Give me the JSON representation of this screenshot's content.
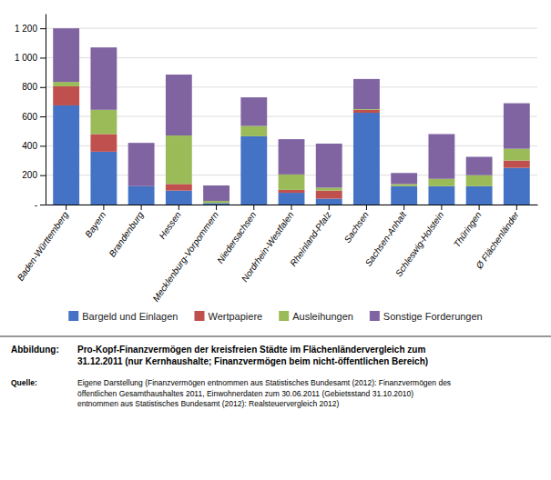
{
  "chart_data": {
    "type": "bar",
    "stacked": true,
    "grid": true,
    "legend": "bottom",
    "categories": [
      "Baden-Württemberg",
      "Bayern",
      "Brandenburg",
      "Hessen",
      "Mecklenburg-Vorpommern",
      "Niedersachsen",
      "Nordrhein-Westfalen",
      "Rheinland-Pfalz",
      "Sachsen",
      "Sachsen-Anhalt",
      "Schleswig-Holstein",
      "Thüringen",
      "Ø Flächenländer"
    ],
    "series": [
      {
        "name": "Bargeld und Einlagen",
        "color": "#4472C4",
        "values": [
          675,
          360,
          125,
          95,
          10,
          465,
          80,
          40,
          625,
          125,
          125,
          125,
          250
        ]
      },
      {
        "name": "Wertpapiere",
        "color": "#C0504D",
        "values": [
          130,
          120,
          0,
          45,
          0,
          0,
          20,
          55,
          20,
          0,
          0,
          0,
          50
        ]
      },
      {
        "name": "Ausleihungen",
        "color": "#9BBB59",
        "values": [
          30,
          165,
          0,
          330,
          15,
          70,
          105,
          20,
          5,
          15,
          50,
          75,
          80
        ]
      },
      {
        "name": "Sonstige Forderungen",
        "color": "#8064A2",
        "values": [
          365,
          425,
          295,
          415,
          105,
          195,
          240,
          300,
          205,
          75,
          305,
          125,
          310
        ]
      }
    ],
    "ylim": [
      0,
      1300
    ],
    "yticks": [
      {
        "value": 0,
        "label": "-"
      },
      200,
      400,
      600,
      800,
      {
        "value": 1000,
        "label": "1 000"
      },
      {
        "value": 1200,
        "label": "1 200"
      }
    ],
    "annotations": [
      {
        "label": "Abbildung:",
        "text": "Pro-Kopf-Finanzvermögen der kreisfreien Städte im Flächenländervergleich zum\n31.12.2011 (nur Kernhaushalte; Finanzvermögen beim nicht-öffentlichen Bereich)"
      },
      {
        "label": "Quelle:",
        "text": "Eigene Darstellung (Finanzvermögen entnommen aus Statistisches Bundesamt (2012): Finanzvermögen des\nöffentlichen Gesamthaushaltes 2011, Einwohnerdaten zum 30.06.2011 (Gebietsstand 31.10.2010)\nentnommen aus Statistisches Bundesamt (2012): Realsteuervergleich 2012)"
      }
    ]
  }
}
